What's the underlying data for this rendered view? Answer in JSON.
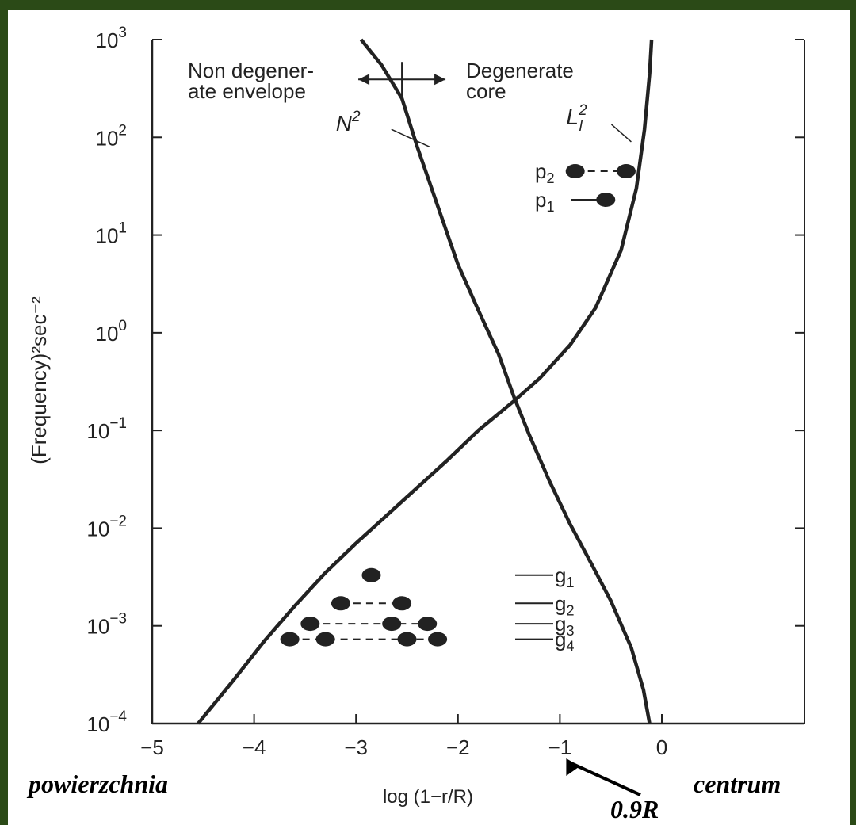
{
  "colors": {
    "background": "#2b4a17",
    "panel": "#ffffff",
    "ink": "#222222"
  },
  "chart_data": {
    "type": "line",
    "xlabel": "log (1−r/R)",
    "ylabel": "(Frequency)²sec⁻²",
    "xlim": [
      -5,
      0.3
    ],
    "ylim": [
      0.0001,
      1000
    ],
    "yscale": "log",
    "grid": false,
    "x_ticks": [
      {
        "value": -5,
        "label": "−5"
      },
      {
        "value": -4,
        "label": "−4"
      },
      {
        "value": -3,
        "label": "−3"
      },
      {
        "value": -2,
        "label": "−2"
      },
      {
        "value": -1,
        "label": "−1"
      },
      {
        "value": 0,
        "label": "0"
      }
    ],
    "y_ticks": [
      {
        "value": 0.0001,
        "base": "10",
        "exp": "−4"
      },
      {
        "value": 0.001,
        "base": "10",
        "exp": "−3"
      },
      {
        "value": 0.01,
        "base": "10",
        "exp": "−2"
      },
      {
        "value": 0.1,
        "base": "10",
        "exp": "−1"
      },
      {
        "value": 1,
        "base": "10",
        "exp": "0"
      },
      {
        "value": 10,
        "base": "10",
        "exp": "1"
      },
      {
        "value": 100,
        "base": "10",
        "exp": "2"
      },
      {
        "value": 1000,
        "base": "10",
        "exp": "3"
      }
    ],
    "series": [
      {
        "name": "N²",
        "x": [
          -2.95,
          -2.75,
          -2.55,
          -2.4,
          -2.2,
          -2.0,
          -1.8,
          -1.6,
          -1.45,
          -1.3,
          -1.1,
          -0.9,
          -0.7,
          -0.5,
          -0.3,
          -0.18,
          -0.12
        ],
        "y": [
          1000,
          550,
          250,
          80,
          20,
          5,
          1.7,
          0.6,
          0.22,
          0.09,
          0.03,
          0.011,
          0.0045,
          0.0018,
          0.0006,
          0.00022,
          0.0001
        ]
      },
      {
        "name": "Lₗ²",
        "x": [
          -4.55,
          -4.2,
          -3.9,
          -3.6,
          -3.3,
          -3.0,
          -2.7,
          -2.4,
          -2.1,
          -1.8,
          -1.45,
          -1.2,
          -0.9,
          -0.65,
          -0.4,
          -0.25,
          -0.17,
          -0.12,
          -0.1
        ],
        "y": [
          0.0001,
          0.00028,
          0.0007,
          0.0016,
          0.0035,
          0.007,
          0.0135,
          0.026,
          0.05,
          0.1,
          0.2,
          0.34,
          0.75,
          1.8,
          7,
          30,
          120,
          450,
          1000
        ]
      }
    ],
    "boundary_annotation": {
      "left": [
        "Non degener-",
        "ate envelope"
      ],
      "right": [
        "Degenerate",
        "core"
      ],
      "x": -2.55,
      "y": 350
    },
    "modes": [
      {
        "label": "p",
        "sub": "2",
        "points": [
          [
            -0.85,
            45
          ],
          [
            -0.35,
            45
          ]
        ]
      },
      {
        "label": "p",
        "sub": "1",
        "points": [
          [
            -0.55,
            23
          ]
        ]
      },
      {
        "label": "g",
        "sub": "1",
        "points": [
          [
            -2.85,
            0.0033
          ]
        ]
      },
      {
        "label": "g",
        "sub": "2",
        "points": [
          [
            -3.15,
            0.0017
          ],
          [
            -2.55,
            0.0017
          ]
        ]
      },
      {
        "label": "g",
        "sub": "3",
        "points": [
          [
            -3.45,
            0.00105
          ],
          [
            -2.65,
            0.00105
          ],
          [
            -2.3,
            0.00105
          ]
        ]
      },
      {
        "label": "g",
        "sub": "4",
        "points": [
          [
            -3.65,
            0.00073
          ],
          [
            -3.3,
            0.00073
          ],
          [
            -2.5,
            0.00073
          ],
          [
            -2.2,
            0.00073
          ]
        ]
      }
    ],
    "annotations": {
      "left_corner": "powierzchnia",
      "right_corner": "centrum",
      "radius_marker": "0.9R",
      "radius_marker_x": -1
    }
  }
}
